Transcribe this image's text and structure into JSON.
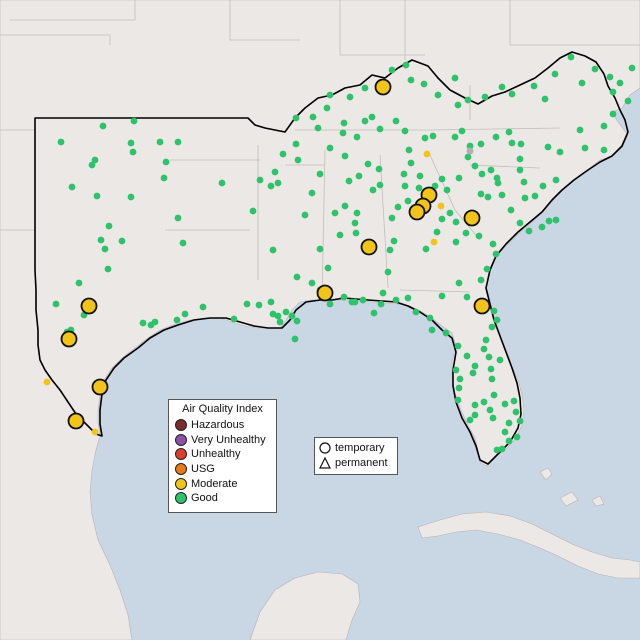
{
  "legend": {
    "title": "Air Quality Index",
    "categories": [
      {
        "label": "Hazardous",
        "color": "#7e2c2c"
      },
      {
        "label": "Very Unhealthy",
        "color": "#8f4fa8"
      },
      {
        "label": "Unhealthy",
        "color": "#e03b2f"
      },
      {
        "label": "USG",
        "color": "#e67c18"
      },
      {
        "label": "Moderate",
        "color": "#f2c318"
      },
      {
        "label": "Good",
        "color": "#2ec36a"
      }
    ]
  },
  "site_types": [
    {
      "label": "temporary",
      "icon": "circle-icon"
    },
    {
      "label": "permanent",
      "icon": "triangle-icon"
    }
  ],
  "colors": {
    "water": "#c9d6e4",
    "land": "#ece8e6",
    "region_outline": "#000000",
    "good": "#2ec36a",
    "moderate": "#f2c318"
  },
  "monitors": {
    "moderate_temporary_sites": 14,
    "moderate_small_sites": 6,
    "good_sites_shown": 230
  }
}
